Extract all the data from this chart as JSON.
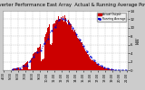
{
  "title": "Solar PV/Inverter Performance East Array  Actual & Running Average Power Output",
  "title_fontsize": 3.8,
  "bg_color": "#cccccc",
  "plot_bg_color": "#ffffff",
  "bar_color": "#cc0000",
  "avg_color": "#0000cc",
  "grid_color": "#888888",
  "ylabel": "kW",
  "ylabel_fontsize": 3.5,
  "tick_fontsize": 2.8,
  "xlabel_fontsize": 2.5,
  "ylim": [
    0,
    14
  ],
  "yticks": [
    0,
    2,
    4,
    6,
    8,
    10,
    12,
    14
  ],
  "n_bars": 140,
  "peak_value": 13.2,
  "legend_entries": [
    "Actual Output",
    "Running Average"
  ],
  "legend_colors": [
    "#cc0000",
    "#0000cc"
  ],
  "x_labels": [
    "4:00",
    "5:00",
    "6:00",
    "7:00",
    "8:00",
    "9:00",
    "10:00",
    "11:00",
    "12:00",
    "13:00",
    "14:00",
    "15:00",
    "16:00",
    "17:00",
    "18:00",
    "19:00",
    "20:00",
    "21:00"
  ]
}
